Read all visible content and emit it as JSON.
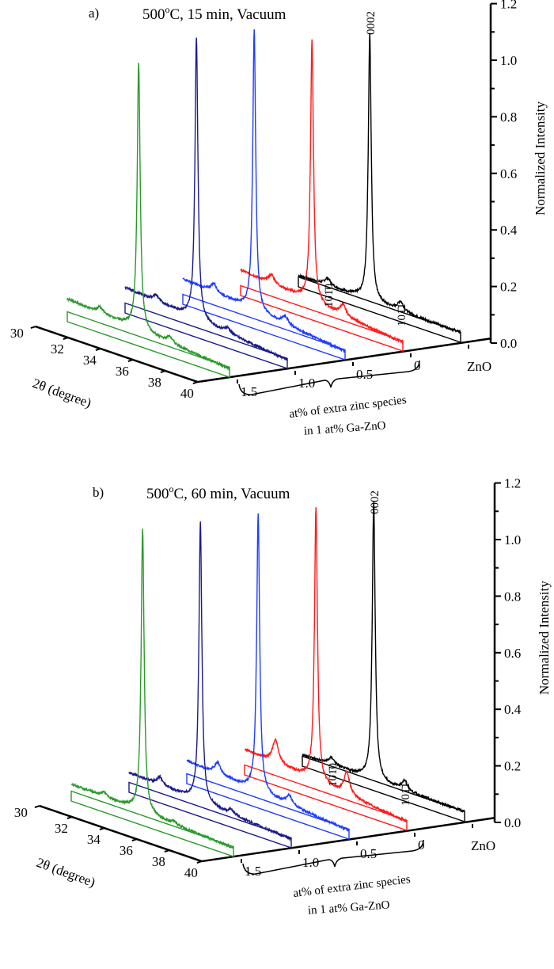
{
  "chart_data": [
    {
      "type": "line",
      "panel_label": "a)",
      "title_parts": [
        "500",
        "o",
        "C, 15 min, Vacuum"
      ],
      "xlabel": "2θ (degree)",
      "ylabel": "Normalized Intensity",
      "zlabel_lines": [
        "at% of extra zinc species",
        "in 1 at% Ga-ZnO"
      ],
      "xlim": [
        30,
        40
      ],
      "ylim": [
        0,
        1.2
      ],
      "x_ticks": [
        "30",
        "32",
        "34",
        "36",
        "38",
        "40"
      ],
      "y_ticks": [
        "0.0",
        "0.2",
        "0.4",
        "0.6",
        "0.8",
        "1.0",
        "1.2"
      ],
      "peak_labels": [
        {
          "text": "0002",
          "x": 34.4,
          "series": 0
        },
        {
          "text": "101̄0",
          "x": 31.8,
          "series": 0
        },
        {
          "text": "101̄1",
          "x": 36.3,
          "series": 0
        }
      ],
      "series": [
        {
          "name": "ZnO",
          "color": "#000000",
          "background": [
            0.04,
            0.035
          ],
          "peaks": [
            {
              "x": 31.8,
              "y": 0.065
            },
            {
              "x": 34.4,
              "y": 0.98
            },
            {
              "x": 36.3,
              "y": 0.07
            }
          ]
        },
        {
          "name": "0",
          "color": "#ff1a1a",
          "background": [
            0.09,
            0.03
          ],
          "peaks": [
            {
              "x": 31.9,
              "y": 0.11
            },
            {
              "x": 34.4,
              "y": 0.99
            },
            {
              "x": 36.3,
              "y": 0.09
            }
          ]
        },
        {
          "name": "0.5",
          "color": "#1f3cff",
          "background": [
            0.09,
            0.03
          ],
          "peaks": [
            {
              "x": 31.9,
              "y": 0.11
            },
            {
              "x": 34.4,
              "y": 1.06
            },
            {
              "x": 36.3,
              "y": 0.08
            }
          ]
        },
        {
          "name": "1.0",
          "color": "#1a1a8c",
          "background": [
            0.09,
            0.03
          ],
          "peaks": [
            {
              "x": 31.9,
              "y": 0.1
            },
            {
              "x": 34.4,
              "y": 1.06
            },
            {
              "x": 36.3,
              "y": 0.07
            }
          ]
        },
        {
          "name": "1.5",
          "color": "#2a9a2a",
          "background": [
            0.08,
            0.03
          ],
          "peaks": [
            {
              "x": 32.0,
              "y": 0.09
            },
            {
              "x": 34.4,
              "y": 1.0
            },
            {
              "x": 36.3,
              "y": 0.07
            }
          ]
        }
      ]
    },
    {
      "type": "line",
      "panel_label": "b)",
      "title_parts": [
        "500",
        "o",
        "C, 60 min, Vacuum"
      ],
      "xlabel": "2θ (degree)",
      "ylabel": "Normalized Intensity",
      "zlabel_lines": [
        "at% of extra zinc species",
        "in 1 at% Ga-ZnO"
      ],
      "xlim": [
        30,
        40
      ],
      "ylim": [
        0,
        1.2
      ],
      "x_ticks": [
        "30",
        "32",
        "34",
        "36",
        "38",
        "40"
      ],
      "y_ticks": [
        "0.0",
        "0.2",
        "0.4",
        "0.6",
        "0.8",
        "1.0",
        "1.2"
      ],
      "peak_labels": [
        {
          "text": "0002",
          "x": 34.4,
          "series": 0
        },
        {
          "text": "101̄0",
          "x": 31.8,
          "series": 0
        },
        {
          "text": "101̄1",
          "x": 36.3,
          "series": 0
        }
      ],
      "series": [
        {
          "name": "ZnO",
          "color": "#000000",
          "background": [
            0.04,
            0.035
          ],
          "peaks": [
            {
              "x": 31.8,
              "y": 0.065
            },
            {
              "x": 34.4,
              "y": 1.02
            },
            {
              "x": 36.3,
              "y": 0.07
            }
          ]
        },
        {
          "name": "0",
          "color": "#ff1a1a",
          "background": [
            0.09,
            0.03
          ],
          "peaks": [
            {
              "x": 31.9,
              "y": 0.16
            },
            {
              "x": 34.4,
              "y": 1.03
            },
            {
              "x": 36.3,
              "y": 0.13
            }
          ]
        },
        {
          "name": "0.5",
          "color": "#1f3cff",
          "background": [
            0.08,
            0.03
          ],
          "peaks": [
            {
              "x": 31.9,
              "y": 0.11
            },
            {
              "x": 34.4,
              "y": 1.04
            },
            {
              "x": 36.3,
              "y": 0.08
            }
          ]
        },
        {
          "name": "1.0",
          "color": "#1a1a8c",
          "background": [
            0.07,
            0.03
          ],
          "peaks": [
            {
              "x": 31.9,
              "y": 0.09
            },
            {
              "x": 34.4,
              "y": 1.04
            },
            {
              "x": 36.3,
              "y": 0.06
            }
          ]
        },
        {
          "name": "1.5",
          "color": "#2a9a2a",
          "background": [
            0.06,
            0.03
          ],
          "peaks": [
            {
              "x": 32.0,
              "y": 0.07
            },
            {
              "x": 34.4,
              "y": 1.05
            },
            {
              "x": 36.3,
              "y": 0.05
            }
          ]
        }
      ]
    }
  ]
}
